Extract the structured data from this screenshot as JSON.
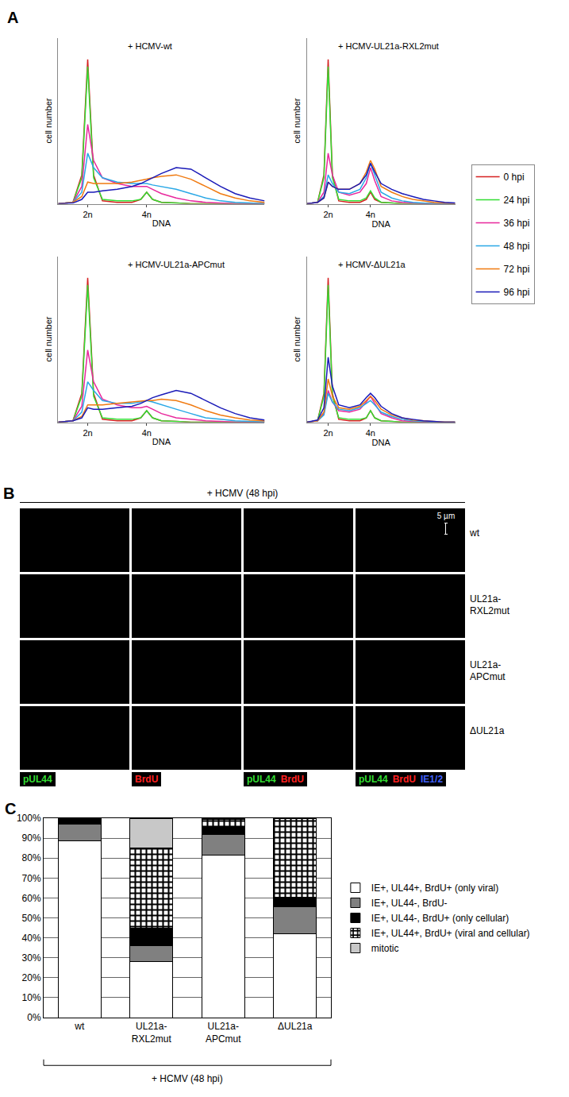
{
  "panel_labels": [
    "A",
    "B",
    "C"
  ],
  "chart_data": [
    {
      "type": "line",
      "x_label": "DNA",
      "y_label": "cell number",
      "x": [
        1,
        1.5,
        1.8,
        2,
        2.2,
        2.5,
        3,
        3.5,
        3.8,
        4,
        4.2,
        4.5,
        5,
        5.5,
        6,
        6.5,
        7,
        7.5,
        8
      ],
      "xlim": [
        1,
        8
      ],
      "xticks": [
        {
          "value": 2,
          "label": "2n"
        },
        {
          "value": 4,
          "label": "4n"
        }
      ],
      "ylim": [
        0,
        115
      ],
      "tick_labels": "x",
      "grid": false,
      "legend": "right",
      "series": [
        {
          "name": "0 hpi",
          "color": "#d62020"
        },
        {
          "name": "24 hpi",
          "color": "#33dd33"
        },
        {
          "name": "36 hpi",
          "color": "#e8279c"
        },
        {
          "name": "48 hpi",
          "color": "#2aa8e6"
        },
        {
          "name": "72 hpi",
          "color": "#f07a10"
        },
        {
          "name": "96 hpi",
          "color": "#1a1ab8"
        }
      ],
      "panels": [
        {
          "title": "+ HCMV-wt",
          "values": [
            [
              0,
              1,
              20,
              100,
              20,
              2,
              1,
              1,
              3,
              8,
              3,
              1,
              0.5,
              0,
              0,
              0,
              0,
              0,
              0
            ],
            [
              0,
              1,
              18,
              95,
              18,
              3,
              2,
              2,
              3,
              8,
              3,
              1,
              0.5,
              0,
              0,
              0,
              0,
              0,
              0
            ],
            [
              0,
              1,
              12,
              55,
              30,
              18,
              14,
              12,
              12,
              12,
              10,
              7,
              4,
              2,
              1,
              0.5,
              0,
              0,
              0
            ],
            [
              0,
              1,
              8,
              35,
              25,
              18,
              15,
              14,
              14,
              14,
              13,
              12,
              10,
              7,
              4,
              2,
              1,
              0.5,
              0
            ],
            [
              0,
              1,
              5,
              15,
              14,
              14,
              14,
              15,
              16,
              17,
              18,
              19,
              20,
              17,
              12,
              7,
              4,
              2,
              1
            ],
            [
              0,
              0.5,
              3,
              8,
              8,
              9,
              10,
              12,
              14,
              16,
              18,
              21,
              25,
              24,
              18,
              12,
              7,
              4,
              2
            ]
          ]
        },
        {
          "title": "+ HCMV-UL21a-RXL2mut",
          "values": [
            [
              0,
              1,
              20,
              100,
              20,
              2,
              1,
              1,
              3,
              8,
              3,
              1,
              0.5,
              0,
              0,
              0,
              0,
              0,
              0
            ],
            [
              0,
              1,
              18,
              95,
              18,
              3,
              2,
              2,
              4,
              9,
              4,
              1,
              0.5,
              0,
              0,
              0,
              0,
              0,
              0
            ],
            [
              0,
              1,
              8,
              35,
              20,
              8,
              6,
              8,
              14,
              25,
              16,
              5,
              2,
              1,
              0.5,
              0,
              0,
              0,
              0
            ],
            [
              0,
              1,
              5,
              20,
              14,
              8,
              7,
              10,
              18,
              28,
              20,
              8,
              4,
              2,
              1,
              0.5,
              0,
              0,
              0
            ],
            [
              0,
              1,
              4,
              15,
              12,
              10,
              10,
              14,
              22,
              30,
              24,
              12,
              8,
              5,
              3,
              2,
              1,
              0.5,
              0
            ],
            [
              0,
              1,
              4,
              15,
              12,
              10,
              10,
              14,
              20,
              28,
              22,
              14,
              10,
              7,
              5,
              3,
              2,
              1,
              0.5
            ]
          ]
        },
        {
          "title": "+ HCMV-UL21a-APCmut",
          "values": [
            [
              0,
              1,
              20,
              100,
              20,
              2,
              1,
              1,
              3,
              8,
              3,
              1,
              0.5,
              0,
              0,
              0,
              0,
              0,
              0
            ],
            [
              0,
              1,
              18,
              95,
              18,
              3,
              2,
              2,
              3,
              8,
              3,
              1,
              0.5,
              0,
              0,
              0,
              0,
              0,
              0
            ],
            [
              0,
              1,
              11,
              50,
              28,
              16,
              12,
              10,
              10,
              11,
              9,
              6,
              3,
              2,
              1,
              0.5,
              0,
              0,
              0
            ],
            [
              0,
              1,
              7,
              28,
              22,
              15,
              13,
              13,
              14,
              15,
              14,
              12,
              9,
              6,
              3,
              2,
              1,
              0.5,
              0
            ],
            [
              0,
              1,
              4,
              12,
              12,
              12,
              13,
              14,
              15,
              15,
              15,
              16,
              15,
              12,
              8,
              5,
              3,
              1.5,
              1
            ],
            [
              0,
              1,
              3,
              10,
              9,
              9,
              10,
              11,
              13,
              15,
              17,
              19,
              22,
              20,
              15,
              10,
              6,
              3,
              1.5
            ]
          ]
        },
        {
          "title": "+ HCMV-ΔUL21a",
          "values": [
            [
              0,
              1,
              20,
              100,
              20,
              2,
              1,
              1,
              3,
              8,
              3,
              1,
              0.5,
              0,
              0,
              0,
              0,
              0,
              0
            ],
            [
              0,
              1,
              18,
              95,
              18,
              3,
              2,
              2,
              3,
              8,
              3,
              1,
              0.5,
              0,
              0,
              0,
              0,
              0,
              0
            ],
            [
              0,
              1,
              6,
              22,
              14,
              8,
              7,
              9,
              14,
              18,
              13,
              6,
              3,
              1,
              0.5,
              0,
              0,
              0,
              0
            ],
            [
              0,
              1,
              5,
              20,
              14,
              9,
              8,
              10,
              13,
              15,
              12,
              7,
              4,
              2,
              1,
              0.5,
              0,
              0,
              0
            ],
            [
              0,
              1,
              7,
              30,
              18,
              10,
              9,
              11,
              15,
              18,
              15,
              9,
              5,
              3,
              1.5,
              1,
              0.5,
              0,
              0
            ],
            [
              0,
              1.5,
              10,
              45,
              25,
              12,
              10,
              12,
              17,
              20,
              17,
              11,
              6,
              3,
              2,
              1,
              0.5,
              0,
              0
            ]
          ]
        }
      ]
    },
    {
      "type": "bar",
      "stacked": true,
      "x_label": "+ HCMV (48 hpi)",
      "categories": [
        "wt",
        "UL21a-RXL2mut",
        "UL21a-APCmut",
        "ΔUL21a"
      ],
      "ylim": [
        0,
        100
      ],
      "yticks": [
        {
          "value": 0,
          "label": "0%"
        },
        {
          "value": 10,
          "label": "10%"
        },
        {
          "value": 20,
          "label": "20%"
        },
        {
          "value": 30,
          "label": "30%"
        },
        {
          "value": 40,
          "label": "40%"
        },
        {
          "value": 50,
          "label": "50%"
        },
        {
          "value": 60,
          "label": "60%"
        },
        {
          "value": 70,
          "label": "70%"
        },
        {
          "value": 80,
          "label": "80%"
        },
        {
          "value": 90,
          "label": "90%"
        },
        {
          "value": 100,
          "label": "100%"
        }
      ],
      "grid": true,
      "legend": "right",
      "series": [
        {
          "name": "IE+, UL44+, BrdU+ (only viral)",
          "color": "#ffffff",
          "values": [
            88.5,
            28,
            81.5,
            42
          ]
        },
        {
          "name": "IE+, UL44-, BrdU-",
          "color": "#808080",
          "values": [
            8.5,
            8,
            10.5,
            13.5
          ]
        },
        {
          "name": "IE+, UL44-, BrdU+ (only cellular)",
          "color": "#000000",
          "values": [
            2.5,
            9,
            4,
            5
          ]
        },
        {
          "name": "IE+, UL44+, BrdU+ (viral and cellular)",
          "color": "#ffffff",
          "marker": "checkered",
          "values": [
            0.5,
            40,
            3.5,
            39.5
          ]
        },
        {
          "name": "mitotic",
          "color": "#c8c8c8",
          "values": [
            0,
            15,
            0.5,
            0
          ]
        }
      ]
    }
  ],
  "microscopy": {
    "title": "+ HCMV (48 hpi)",
    "rows": [
      "wt",
      "UL21a-RXL2mut",
      "UL21a-APCmut",
      "ΔUL21a"
    ],
    "columns": [
      [
        {
          "text": "pUL44",
          "color": "#33dd33"
        }
      ],
      [
        {
          "text": "BrdU",
          "color": "#ff2020"
        }
      ],
      [
        {
          "text": "pUL44",
          "color": "#33dd33"
        },
        {
          "text": "BrdU",
          "color": "#ff2020"
        }
      ],
      [
        {
          "text": "pUL44",
          "color": "#33dd33"
        },
        {
          "text": "BrdU",
          "color": "#ff2020"
        },
        {
          "text": "IE1/2",
          "color": "#4060ff"
        }
      ]
    ],
    "scale_bar": "5 µm"
  }
}
